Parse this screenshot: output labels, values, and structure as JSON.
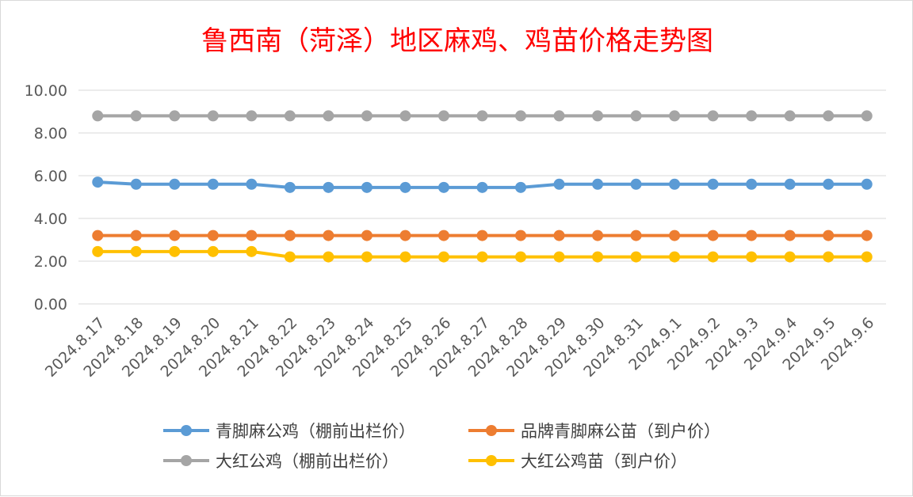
{
  "chart_data": {
    "type": "line",
    "title": "鲁西南（菏泽）地区麻鸡、鸡苗价格走势图",
    "xlabel": "",
    "ylabel": "",
    "ylim": [
      0,
      10
    ],
    "yticks": [
      "0.00",
      "2.00",
      "4.00",
      "6.00",
      "8.00",
      "10.00"
    ],
    "grid": true,
    "legend_position": "bottom",
    "x": [
      "2024.8.17",
      "2024.8.18",
      "2024.8.19",
      "2024.8.20",
      "2024.8.21",
      "2024.8.22",
      "2024.8.23",
      "2024.8.24",
      "2024.8.25",
      "2024.8.26",
      "2024.8.27",
      "2024.8.28",
      "2024.8.29",
      "2024.8.30",
      "2024.8.31",
      "2024.9.1",
      "2024.9.2",
      "2024.9.3",
      "2024.9.4",
      "2024.9.5",
      "2024.9.6"
    ],
    "series": [
      {
        "name": "青脚麻公鸡（棚前出栏价）",
        "color": "#5b9bd5",
        "values": [
          5.7,
          5.6,
          5.6,
          5.6,
          5.6,
          5.45,
          5.45,
          5.45,
          5.45,
          5.45,
          5.45,
          5.45,
          5.6,
          5.6,
          5.6,
          5.6,
          5.6,
          5.6,
          5.6,
          5.6,
          5.6
        ]
      },
      {
        "name": "品牌青脚麻公苗（到户价）",
        "color": "#ed7d31",
        "values": [
          3.2,
          3.2,
          3.2,
          3.2,
          3.2,
          3.2,
          3.2,
          3.2,
          3.2,
          3.2,
          3.2,
          3.2,
          3.2,
          3.2,
          3.2,
          3.2,
          3.2,
          3.2,
          3.2,
          3.2,
          3.2
        ]
      },
      {
        "name": "大红公鸡（棚前出栏价）",
        "color": "#a5a5a5",
        "values": [
          8.8,
          8.8,
          8.8,
          8.8,
          8.8,
          8.8,
          8.8,
          8.8,
          8.8,
          8.8,
          8.8,
          8.8,
          8.8,
          8.8,
          8.8,
          8.8,
          8.8,
          8.8,
          8.8,
          8.8,
          8.8
        ]
      },
      {
        "name": "大红公鸡苗（到户价）",
        "color": "#ffc000",
        "values": [
          2.45,
          2.45,
          2.45,
          2.45,
          2.45,
          2.2,
          2.2,
          2.2,
          2.2,
          2.2,
          2.2,
          2.2,
          2.2,
          2.2,
          2.2,
          2.2,
          2.2,
          2.2,
          2.2,
          2.2,
          2.2
        ]
      }
    ]
  }
}
